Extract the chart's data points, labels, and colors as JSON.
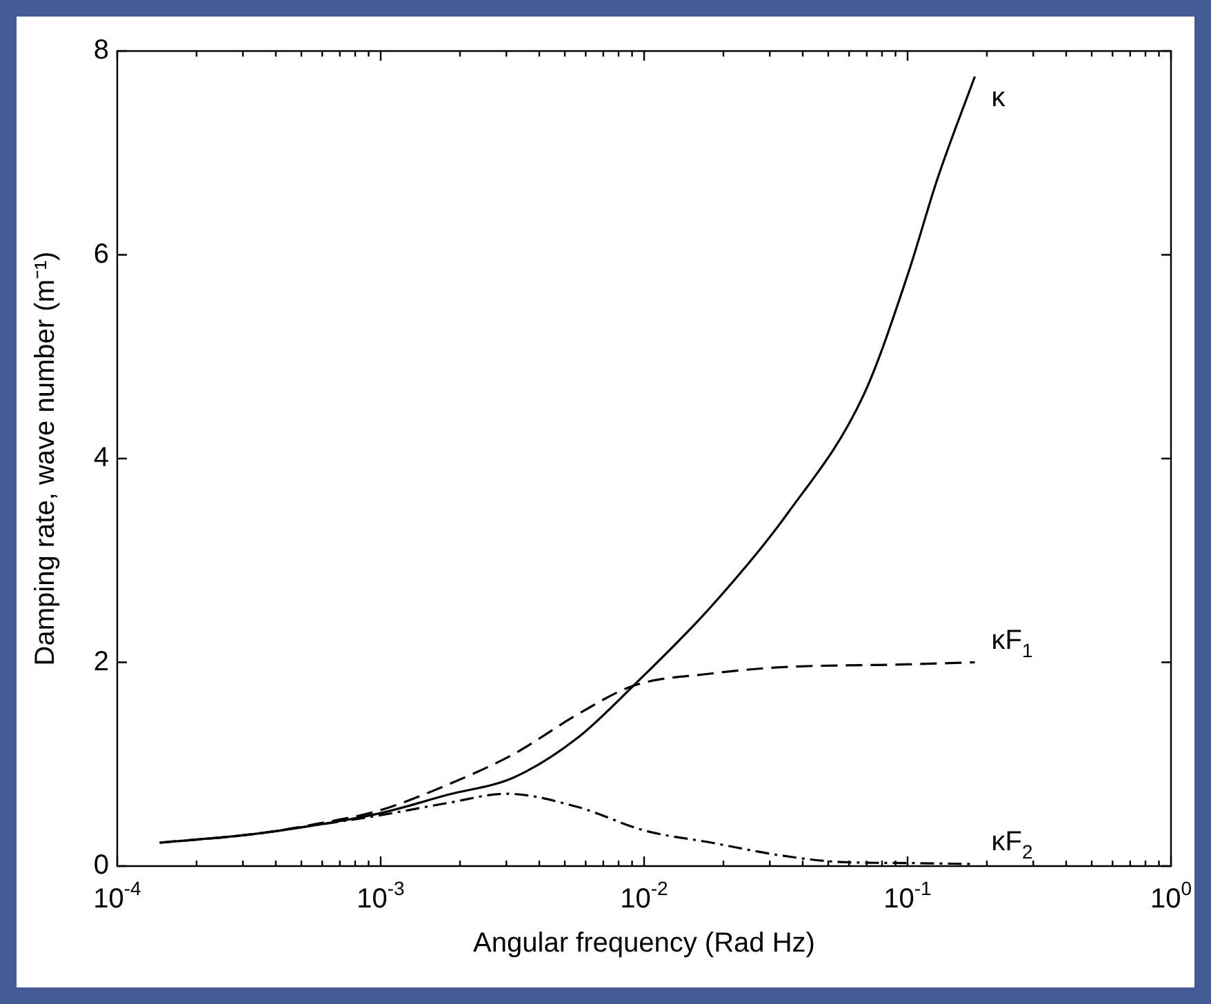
{
  "chart_data": {
    "type": "line",
    "xlabel": "Angular frequency (Rad Hz)",
    "ylabel": "Damping rate, wave number (m⁻¹)",
    "log": "x",
    "xlim": [
      0.0001,
      1
    ],
    "xticks": [
      {
        "value": 0.0001,
        "label": "10$^{-4}$"
      },
      {
        "value": 0.001,
        "label": "10$^{-3}$"
      },
      {
        "value": 0.01,
        "label": "10$^{-2}$"
      },
      {
        "value": 0.1,
        "label": "10$^{-1}$"
      },
      {
        "value": 1,
        "label": "10$^{0}$"
      }
    ],
    "ylim": [
      0,
      8
    ],
    "yticks": [
      0,
      2,
      4,
      6,
      8
    ],
    "grid": false,
    "legend": "right",
    "marker": "none",
    "series": [
      {
        "name": "κ",
        "color": "#000000",
        "line_style": "solid",
        "x": [
          0.000145,
          0.00032,
          0.00056,
          0.001,
          0.0018,
          0.0032,
          0.0056,
          0.0091,
          0.018,
          0.035,
          0.068,
          0.1,
          0.13,
          0.18
        ],
        "values": [
          0.23,
          0.31,
          0.4,
          0.52,
          0.7,
          0.87,
          1.26,
          1.77,
          2.55,
          3.46,
          4.62,
          5.8,
          6.75,
          7.75
        ]
      },
      {
        "name": "κF$_{1}$",
        "color": "#000000",
        "line_style": "dashed",
        "x": [
          0.000145,
          0.00032,
          0.00056,
          0.001,
          0.0018,
          0.0032,
          0.0056,
          0.0091,
          0.018,
          0.032,
          0.1,
          0.18
        ],
        "values": [
          0.23,
          0.31,
          0.41,
          0.55,
          0.8,
          1.1,
          1.49,
          1.77,
          1.89,
          1.95,
          1.98,
          2.0
        ]
      },
      {
        "name": "κF$_{2}$",
        "color": "#000000",
        "line_style": "dashdot",
        "x": [
          0.000145,
          0.00032,
          0.00056,
          0.001,
          0.0018,
          0.003,
          0.0056,
          0.01,
          0.018,
          0.032,
          0.056,
          0.1,
          0.18
        ],
        "values": [
          0.23,
          0.31,
          0.4,
          0.5,
          0.62,
          0.71,
          0.58,
          0.35,
          0.23,
          0.11,
          0.04,
          0.03,
          0.02
        ]
      }
    ]
  }
}
